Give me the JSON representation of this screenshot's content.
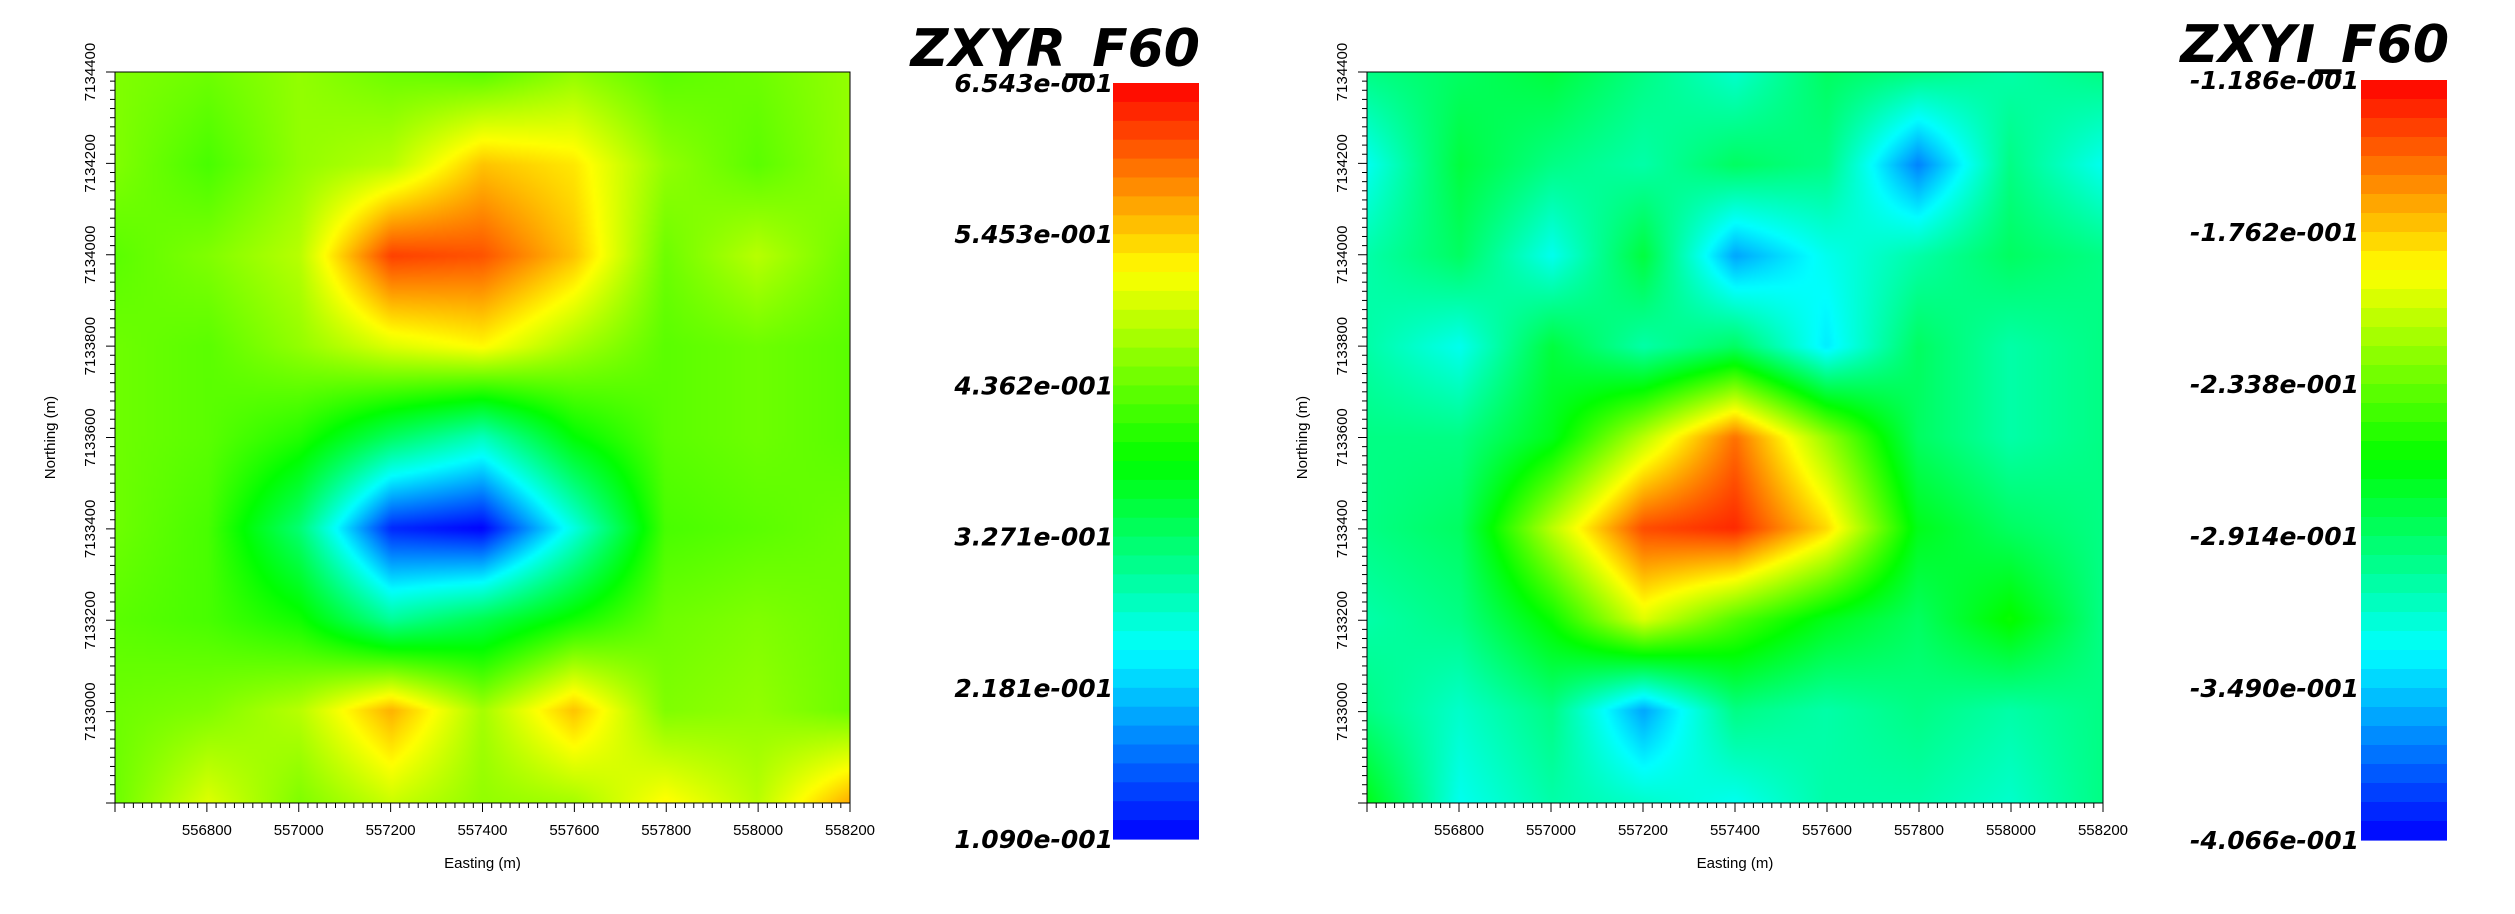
{
  "colors": {
    "scale": [
      "#0000ff",
      "#00ffff",
      "#00ff00",
      "#ffff00",
      "#ff0000"
    ]
  },
  "chart_data": [
    {
      "type": "heatmap",
      "title": "ZXYR_F60",
      "xlabel": "Easting (m)",
      "ylabel": "Northing (m)",
      "xlim": [
        556600,
        558200
      ],
      "ylim": [
        7132800,
        7134400
      ],
      "x_ticks": [
        556800,
        557000,
        557200,
        557400,
        557600,
        557800,
        558000,
        558200
      ],
      "y_ticks": [
        7133000,
        7133200,
        7133400,
        7133600,
        7133800,
        7134000,
        7134200,
        7134400
      ],
      "colorbar": {
        "min": 0.109,
        "max": 0.6543,
        "labels": [
          "6.543e-001",
          "5.453e-001",
          "4.362e-001",
          "3.271e-001",
          "2.181e-001",
          "1.090e-001"
        ]
      },
      "x": [
        556600,
        556800,
        557000,
        557200,
        557400,
        557600,
        557800,
        558000,
        558200
      ],
      "y": [
        7134400,
        7134200,
        7134000,
        7133800,
        7133600,
        7133400,
        7133200,
        7133000,
        7132800
      ],
      "z": [
        [
          0.45,
          0.44,
          0.46,
          0.44,
          0.43,
          0.46,
          0.43,
          0.44,
          0.46
        ],
        [
          0.45,
          0.42,
          0.46,
          0.48,
          0.55,
          0.53,
          0.46,
          0.43,
          0.46
        ],
        [
          0.43,
          0.45,
          0.48,
          0.62,
          0.61,
          0.55,
          0.44,
          0.48,
          0.44
        ],
        [
          0.44,
          0.43,
          0.46,
          0.5,
          0.52,
          0.47,
          0.43,
          0.44,
          0.43
        ],
        [
          0.44,
          0.43,
          0.4,
          0.33,
          0.28,
          0.38,
          0.43,
          0.44,
          0.43
        ],
        [
          0.44,
          0.42,
          0.32,
          0.13,
          0.11,
          0.26,
          0.42,
          0.43,
          0.44
        ],
        [
          0.43,
          0.42,
          0.39,
          0.3,
          0.34,
          0.39,
          0.44,
          0.45,
          0.44
        ],
        [
          0.44,
          0.45,
          0.48,
          0.56,
          0.47,
          0.55,
          0.45,
          0.46,
          0.44
        ],
        [
          0.44,
          0.5,
          0.45,
          0.49,
          0.46,
          0.47,
          0.52,
          0.48,
          0.56
        ]
      ]
    },
    {
      "type": "heatmap",
      "title": "ZXYI_F60",
      "xlabel": "Easting (m)",
      "ylabel": "Northing (m)",
      "xlim": [
        556600,
        558200
      ],
      "ylim": [
        7132800,
        7134400
      ],
      "x_ticks": [
        556800,
        557000,
        557200,
        557400,
        557600,
        557800,
        558000,
        558200
      ],
      "y_ticks": [
        7133000,
        7133200,
        7133400,
        7133600,
        7133800,
        7134000,
        7134200,
        7134400
      ],
      "colorbar": {
        "min": -0.4066,
        "max": -0.1186,
        "labels": [
          "-1.186e-001",
          "-1.762e-001",
          "-2.338e-001",
          "-2.914e-001",
          "-3.490e-001",
          "-4.066e-001"
        ]
      },
      "x": [
        556600,
        556800,
        557000,
        557200,
        557400,
        557600,
        557800,
        558000,
        558200
      ],
      "y": [
        7134400,
        7134200,
        7134000,
        7133800,
        7133600,
        7133400,
        7133200,
        7133000,
        7132800
      ],
      "z": [
        [
          -0.3,
          -0.29,
          -0.28,
          -0.3,
          -0.32,
          -0.29,
          -0.3,
          -0.31,
          -0.3
        ],
        [
          -0.33,
          -0.28,
          -0.3,
          -0.31,
          -0.29,
          -0.3,
          -0.37,
          -0.3,
          -0.33
        ],
        [
          -0.31,
          -0.29,
          -0.33,
          -0.28,
          -0.36,
          -0.33,
          -0.31,
          -0.29,
          -0.3
        ],
        [
          -0.31,
          -0.33,
          -0.28,
          -0.31,
          -0.29,
          -0.34,
          -0.29,
          -0.31,
          -0.3
        ],
        [
          -0.3,
          -0.3,
          -0.27,
          -0.21,
          -0.15,
          -0.22,
          -0.29,
          -0.31,
          -0.3
        ],
        [
          -0.3,
          -0.29,
          -0.21,
          -0.14,
          -0.13,
          -0.18,
          -0.27,
          -0.29,
          -0.3
        ],
        [
          -0.31,
          -0.3,
          -0.26,
          -0.2,
          -0.24,
          -0.27,
          -0.29,
          -0.26,
          -0.3
        ],
        [
          -0.3,
          -0.32,
          -0.3,
          -0.36,
          -0.3,
          -0.31,
          -0.3,
          -0.31,
          -0.3
        ],
        [
          -0.27,
          -0.33,
          -0.31,
          -0.32,
          -0.33,
          -0.31,
          -0.31,
          -0.32,
          -0.3
        ]
      ]
    }
  ]
}
